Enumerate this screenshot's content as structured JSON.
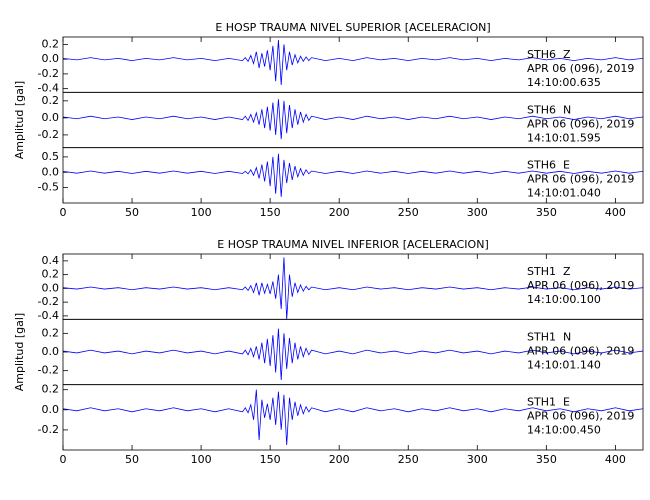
{
  "chart_data": [
    {
      "type": "line",
      "title": "E HOSP TRAUMA NIVEL SUPERIOR [ACELERACION]",
      "y_label": "Amplitud [gal]",
      "color": "#0000ff",
      "xlim": [
        0,
        420
      ],
      "xticks": [
        0,
        50,
        100,
        150,
        200,
        250,
        300,
        350,
        400
      ],
      "x": [
        0,
        10,
        20,
        30,
        40,
        50,
        60,
        70,
        80,
        90,
        100,
        110,
        120,
        130,
        132,
        134,
        136,
        138,
        140,
        142,
        144,
        146,
        148,
        150,
        152,
        154,
        156,
        158,
        160,
        162,
        164,
        166,
        168,
        170,
        172,
        174,
        176,
        178,
        180,
        190,
        200,
        210,
        220,
        230,
        240,
        250,
        260,
        270,
        280,
        290,
        300,
        310,
        320,
        330,
        340,
        350,
        360,
        370,
        380,
        390,
        400,
        410,
        420
      ],
      "panels": [
        {
          "station": "STH6  Z",
          "date": "APR 06 (096), 2019",
          "time": "14:10:00.635",
          "ylim": [
            -0.45,
            0.3
          ],
          "yticks": [
            0.2,
            {
              "value": 0,
              "label": "0.0"
            },
            -0.2,
            -0.4
          ],
          "values": [
            0.01,
            -0.01,
            0.02,
            -0.01,
            0.01,
            -0.02,
            0.01,
            -0.01,
            0.02,
            -0.01,
            0.01,
            -0.02,
            0.01,
            -0.02,
            0.02,
            -0.03,
            0.05,
            -0.06,
            0.1,
            -0.12,
            0.08,
            -0.1,
            0.12,
            -0.15,
            0.18,
            -0.3,
            0.26,
            -0.35,
            0.2,
            -0.15,
            0.1,
            -0.08,
            0.06,
            -0.05,
            0.04,
            -0.03,
            0.03,
            -0.02,
            0.02,
            -0.02,
            0.01,
            -0.02,
            0.02,
            -0.01,
            0.01,
            -0.02,
            0.01,
            -0.01,
            0.02,
            -0.01,
            0.01,
            -0.02,
            0.01,
            -0.01,
            0.02,
            -0.01,
            0.01,
            -0.02,
            0.01,
            -0.01,
            0.02,
            -0.01,
            0.01
          ]
        },
        {
          "station": "STH6  N",
          "date": "APR 06 (096), 2019",
          "time": "14:10:01.595",
          "ylim": [
            -0.35,
            0.3
          ],
          "yticks": [
            0.2,
            {
              "value": 0,
              "label": "0.0"
            },
            -0.2
          ],
          "values": [
            0.01,
            -0.01,
            0.02,
            -0.01,
            0.01,
            -0.02,
            0.01,
            -0.01,
            0.02,
            -0.01,
            0.01,
            -0.02,
            0.01,
            -0.02,
            0.02,
            -0.03,
            0.04,
            -0.05,
            0.06,
            -0.08,
            0.1,
            -0.12,
            0.13,
            -0.15,
            0.18,
            -0.2,
            0.22,
            -0.25,
            0.2,
            -0.18,
            0.15,
            -0.12,
            0.1,
            -0.08,
            0.07,
            -0.05,
            0.04,
            -0.03,
            0.02,
            -0.02,
            0.01,
            -0.02,
            0.02,
            -0.01,
            0.01,
            -0.02,
            0.01,
            -0.01,
            0.02,
            -0.01,
            0.01,
            -0.02,
            0.01,
            -0.01,
            0.02,
            -0.01,
            0.01,
            -0.02,
            0.01,
            -0.01,
            0.02,
            -0.01,
            0.01
          ]
        },
        {
          "station": "STH6  E",
          "date": "APR 06 (096), 2019",
          "time": "14:10:01.040",
          "ylim": [
            -1.0,
            0.8
          ],
          "yticks": [
            0.5,
            {
              "value": 0,
              "label": "0.0"
            },
            -0.5
          ],
          "values": [
            0.03,
            -0.03,
            0.04,
            -0.03,
            0.03,
            -0.04,
            0.03,
            -0.03,
            0.04,
            -0.03,
            0.03,
            -0.04,
            0.03,
            -0.04,
            0.03,
            -0.05,
            0.08,
            -0.1,
            0.15,
            -0.2,
            0.25,
            -0.3,
            0.35,
            -0.45,
            0.5,
            -0.7,
            0.6,
            -0.8,
            0.4,
            -0.35,
            0.3,
            -0.25,
            0.2,
            -0.15,
            0.12,
            -0.1,
            0.08,
            -0.05,
            0.04,
            -0.04,
            0.03,
            -0.04,
            0.04,
            -0.03,
            0.03,
            -0.04,
            0.03,
            -0.03,
            0.04,
            -0.03,
            0.03,
            -0.04,
            0.03,
            -0.03,
            0.04,
            -0.03,
            0.03,
            -0.04,
            0.03,
            -0.03,
            0.04,
            -0.03,
            0.03
          ]
        }
      ]
    },
    {
      "type": "line",
      "title": "E HOSP TRAUMA NIVEL INFERIOR [ACELERACION]",
      "y_label": "Amplitud [gal]",
      "color": "#0000ff",
      "xlim": [
        0,
        420
      ],
      "xticks": [
        0,
        50,
        100,
        150,
        200,
        250,
        300,
        350,
        400
      ],
      "x": [
        0,
        10,
        20,
        30,
        40,
        50,
        60,
        70,
        80,
        90,
        100,
        110,
        120,
        130,
        132,
        134,
        136,
        138,
        140,
        142,
        144,
        146,
        148,
        150,
        152,
        154,
        156,
        158,
        160,
        162,
        164,
        166,
        168,
        170,
        172,
        174,
        176,
        178,
        180,
        190,
        200,
        210,
        220,
        230,
        240,
        250,
        260,
        270,
        280,
        290,
        300,
        310,
        320,
        330,
        340,
        350,
        360,
        370,
        380,
        390,
        400,
        410,
        420
      ],
      "panels": [
        {
          "station": "STH1  Z",
          "date": "APR 06 (096), 2019",
          "time": "14:10:00.100",
          "ylim": [
            -0.45,
            0.5
          ],
          "yticks": [
            0.4,
            0.2,
            {
              "value": 0,
              "label": "0.0"
            },
            -0.2,
            -0.4
          ],
          "values": [
            0.01,
            -0.01,
            0.02,
            -0.01,
            0.01,
            -0.02,
            0.01,
            -0.01,
            0.02,
            -0.01,
            0.01,
            -0.02,
            0.01,
            -0.02,
            0.02,
            -0.03,
            0.04,
            -0.06,
            0.08,
            -0.1,
            0.08,
            -0.07,
            0.06,
            -0.08,
            0.1,
            -0.15,
            0.2,
            -0.3,
            0.45,
            -0.45,
            0.2,
            -0.12,
            0.08,
            -0.06,
            0.05,
            -0.04,
            0.03,
            -0.02,
            0.02,
            -0.02,
            0.01,
            -0.02,
            0.02,
            -0.01,
            0.01,
            -0.02,
            0.01,
            -0.01,
            0.02,
            -0.01,
            0.01,
            -0.02,
            0.01,
            -0.01,
            0.02,
            -0.01,
            0.01,
            -0.02,
            0.01,
            -0.01,
            0.02,
            -0.01,
            0.01
          ]
        },
        {
          "station": "STH1  N",
          "date": "APR 06 (096), 2019",
          "time": "14:10:01.140",
          "ylim": [
            -0.35,
            0.35
          ],
          "yticks": [
            0.2,
            {
              "value": 0,
              "label": "0.0"
            },
            -0.2
          ],
          "values": [
            0.01,
            -0.01,
            0.02,
            -0.01,
            0.01,
            -0.02,
            0.01,
            -0.01,
            0.02,
            -0.01,
            0.01,
            -0.02,
            0.01,
            -0.02,
            0.02,
            -0.03,
            0.04,
            -0.05,
            0.06,
            -0.08,
            0.1,
            -0.12,
            0.14,
            -0.15,
            0.18,
            -0.22,
            0.25,
            -0.3,
            0.2,
            -0.18,
            0.15,
            -0.12,
            0.1,
            -0.08,
            0.06,
            -0.05,
            0.04,
            -0.03,
            0.02,
            -0.02,
            0.01,
            -0.02,
            0.02,
            -0.01,
            0.01,
            -0.02,
            0.01,
            -0.01,
            0.02,
            -0.01,
            0.01,
            -0.02,
            0.01,
            -0.01,
            0.02,
            -0.01,
            0.01,
            -0.02,
            0.01,
            -0.01,
            0.02,
            -0.01,
            0.01
          ]
        },
        {
          "station": "STH1  E",
          "date": "APR 06 (096), 2019",
          "time": "14:10:00.450",
          "ylim": [
            -0.4,
            0.25
          ],
          "yticks": [
            0.2,
            {
              "value": 0,
              "label": "0.0"
            },
            -0.2
          ],
          "values": [
            0.01,
            -0.01,
            0.02,
            -0.01,
            0.01,
            -0.02,
            0.01,
            -0.01,
            0.02,
            -0.01,
            0.01,
            -0.02,
            0.01,
            -0.02,
            0.02,
            -0.03,
            0.05,
            -0.1,
            0.2,
            -0.3,
            0.1,
            -0.08,
            0.06,
            -0.1,
            0.12,
            -0.15,
            0.18,
            -0.2,
            0.15,
            -0.35,
            0.12,
            -0.1,
            0.08,
            -0.06,
            0.05,
            -0.04,
            0.03,
            -0.02,
            0.02,
            -0.02,
            0.01,
            -0.02,
            0.02,
            -0.01,
            0.01,
            -0.02,
            0.01,
            -0.01,
            0.02,
            -0.01,
            0.01,
            -0.02,
            0.01,
            -0.01,
            0.02,
            -0.01,
            0.01,
            -0.02,
            0.01,
            -0.01,
            0.02,
            -0.01,
            0.01
          ]
        }
      ]
    }
  ]
}
